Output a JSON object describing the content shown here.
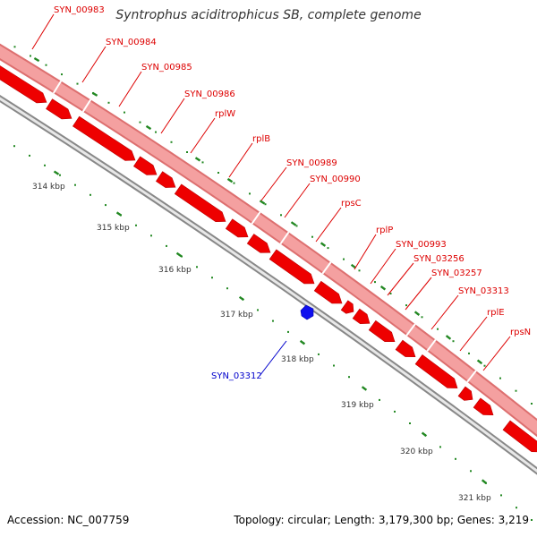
{
  "title": "Syntrophus aciditrophicus SB, complete genome",
  "accession": "Accession: NC_007759",
  "topology": "Topology: circular; Length: 3,179,300 bp; Genes: 3,219",
  "colors": {
    "forward_gene": "#ee0000",
    "reverse_gene": "#0000ee",
    "label_line_forward": "#dd0000",
    "label_line_reverse": "#0000cc",
    "band": "#f4a0a0",
    "tick": "#228822",
    "backbone": "#999999"
  },
  "ruler_labels": [
    "314 kbp",
    "315 kbp",
    "316 kbp",
    "317 kbp",
    "318 kbp",
    "319 kbp",
    "320 kbp",
    "321 kbp"
  ],
  "forward_gene_labels": [
    "SYN_00983",
    "SYN_00984",
    "SYN_00985",
    "SYN_00986",
    "rplW",
    "rplB",
    "SYN_00989",
    "SYN_00990",
    "rpsC",
    "rplP",
    "SYN_00993",
    "SYN_03256",
    "SYN_03257",
    "SYN_03313",
    "rplE",
    "rpsN"
  ],
  "reverse_gene_labels": [
    "SYN_03312"
  ]
}
